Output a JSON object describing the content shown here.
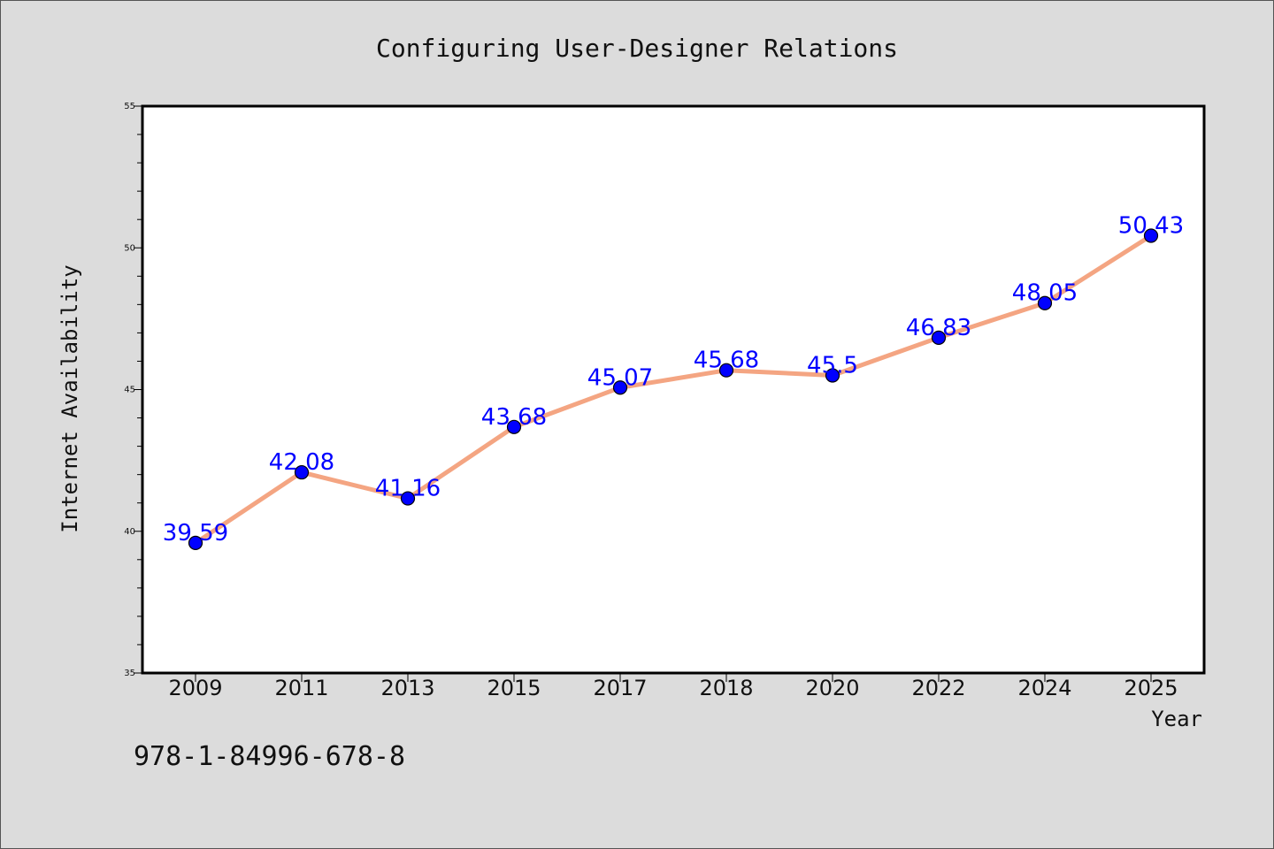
{
  "chart_data": {
    "type": "line",
    "title": "Configuring User-Designer Relations",
    "xlabel": "Year",
    "ylabel": "Internet Availability",
    "categories": [
      "2009",
      "2011",
      "2013",
      "2015",
      "2017",
      "2018",
      "2020",
      "2022",
      "2024",
      "2025"
    ],
    "series": [
      {
        "values": [
          39.59,
          42.08,
          41.16,
          43.68,
          45.07,
          45.68,
          45.5,
          46.83,
          48.05,
          50.43
        ],
        "labels": [
          "39.59",
          "42.08",
          "41.16",
          "43.68",
          "45.07",
          "45.68",
          "45.5",
          "46.83",
          "48.05",
          "50.43"
        ]
      }
    ],
    "ylim": [
      35,
      55
    ],
    "yticks": [
      "35",
      "40",
      "45",
      "50",
      "55"
    ],
    "grid": false,
    "legend": "none"
  },
  "footer_text": "978-1-84996-678-8",
  "colors": {
    "background": "#dcdcdc",
    "plot_area": "#ffffff",
    "line": "#f4a582",
    "marker": "#0000ff",
    "data_label": "#0000ff"
  }
}
